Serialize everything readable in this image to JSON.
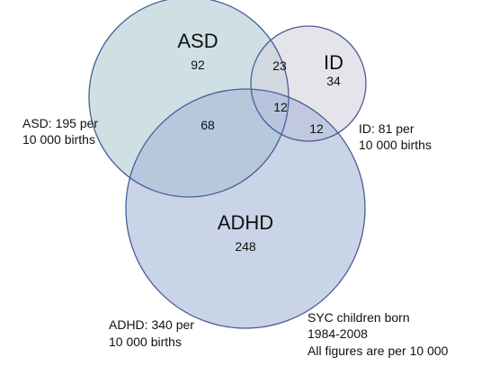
{
  "sets": {
    "asd": {
      "label": "ASD",
      "only_count": "92",
      "fill": "#b3cfd6",
      "stroke": "#4a5d9a"
    },
    "id": {
      "label": "ID",
      "only_count": "34",
      "fill": "#d6d2de",
      "stroke": "#4a5d9a"
    },
    "adhd": {
      "label": "ADHD",
      "only_count": "248",
      "fill": "#a6b7d7",
      "stroke": "#4a5d9a"
    }
  },
  "overlaps": {
    "asd_id": "23",
    "asd_adhd": "68",
    "id_adhd": "12",
    "all_three": "12"
  },
  "prevalence_notes": {
    "asd": {
      "line1": "ASD:  195 per",
      "line2": "10 000 births"
    },
    "id": {
      "line1": "ID:  81 per",
      "line2": "10 000 births"
    },
    "adhd": {
      "line1": "ADHD:  340 per",
      "line2": "10 000 births"
    }
  },
  "footnote": {
    "line1": "SYC children born",
    "line2": "1984-2008",
    "line3": "All figures are per 10 000"
  }
}
